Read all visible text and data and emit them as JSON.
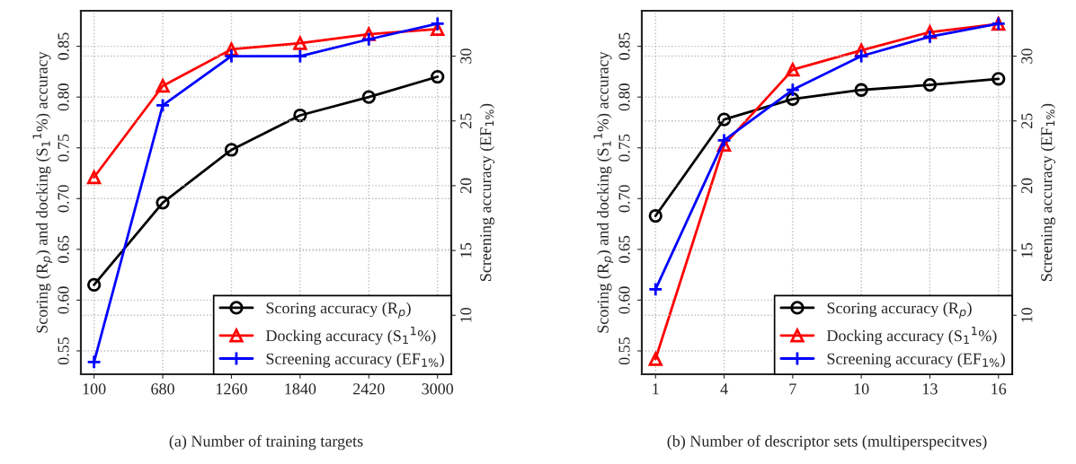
{
  "chart_data": [
    {
      "type": "line",
      "xlabel": "(a) Number of training targets",
      "ylabel": "Scoring (R$_{p}$) and docking (S$_{1}$$^{1}$%) accuracy",
      "y2label": "Screening accuracy (EF$_{1%}$)",
      "x": [
        100,
        680,
        1260,
        1840,
        2420,
        3000
      ],
      "xlim": [
        -11,
        3116
      ],
      "xticks": [
        100,
        680,
        1260,
        1840,
        2420,
        3000
      ],
      "ylim": [
        0.527,
        0.885
      ],
      "yticks": [
        0.55,
        {
          "value": 0.6,
          "label": "0.60"
        },
        0.65,
        {
          "value": 0.7,
          "label": "0.70"
        },
        0.75,
        {
          "value": 0.8,
          "label": "0.80"
        },
        0.85
      ],
      "y2lim": [
        5.45,
        33.5
      ],
      "y2ticks": [
        10,
        15,
        20,
        25,
        30
      ],
      "grid": true,
      "legend": "bottom right",
      "series": [
        {
          "name": "Scoring accuracy (R$_{p}$)",
          "color": "#000000",
          "marker": "circle",
          "values": [
            0.615,
            0.696,
            0.748,
            0.782,
            0.8,
            0.82
          ]
        },
        {
          "name": "Docking accuracy (S$_{1}$$^{1}$%)",
          "color": "#ff0000",
          "marker": "triangle",
          "values": [
            0.721,
            0.811,
            0.847,
            0.853,
            0.862,
            0.867
          ]
        },
        {
          "name": "Screening accuracy (EF$_{1%}$)",
          "color": "#0000ff",
          "marker": "cross",
          "axis": "y2",
          "values": [
            6.4,
            26.2,
            30.0,
            30.0,
            31.3,
            32.5
          ]
        }
      ]
    },
    {
      "type": "line",
      "xlabel": "(b) Number of descriptor sets (multiperspecitves)",
      "ylabel": "Scoring (R$_{p}$) and docking (S$_{1}$$^{1}$%) accuracy",
      "y2label": "Screening accuracy (EF$_{1%}$)",
      "x": [
        1,
        4,
        7,
        10,
        13,
        16
      ],
      "xlim": [
        0.4,
        16.6
      ],
      "xticks": [
        1,
        4,
        7,
        10,
        13,
        16
      ],
      "ylim": [
        0.527,
        0.885
      ],
      "yticks": [
        0.55,
        {
          "value": 0.6,
          "label": "0.60"
        },
        0.65,
        {
          "value": 0.7,
          "label": "0.70"
        },
        0.75,
        {
          "value": 0.8,
          "label": "0.80"
        },
        0.85
      ],
      "y2lim": [
        5.45,
        33.5
      ],
      "y2ticks": [
        10,
        15,
        20,
        25,
        30
      ],
      "grid": true,
      "legend": "bottom right",
      "series": [
        {
          "name": "Scoring accuracy (R$_{p}$)",
          "color": "#000000",
          "marker": "circle",
          "values": [
            0.683,
            0.778,
            0.798,
            0.807,
            0.812,
            0.818
          ]
        },
        {
          "name": "Docking accuracy (S$_{1}$$^{1}$%)",
          "color": "#ff0000",
          "marker": "triangle",
          "values": [
            0.542,
            0.753,
            0.827,
            0.846,
            0.864,
            0.872
          ]
        },
        {
          "name": "Screening accuracy (EF$_{1%}$)",
          "color": "#0000ff",
          "marker": "cross",
          "axis": "y2",
          "values": [
            12.0,
            23.5,
            27.4,
            30.0,
            31.5,
            32.5
          ]
        }
      ]
    }
  ]
}
